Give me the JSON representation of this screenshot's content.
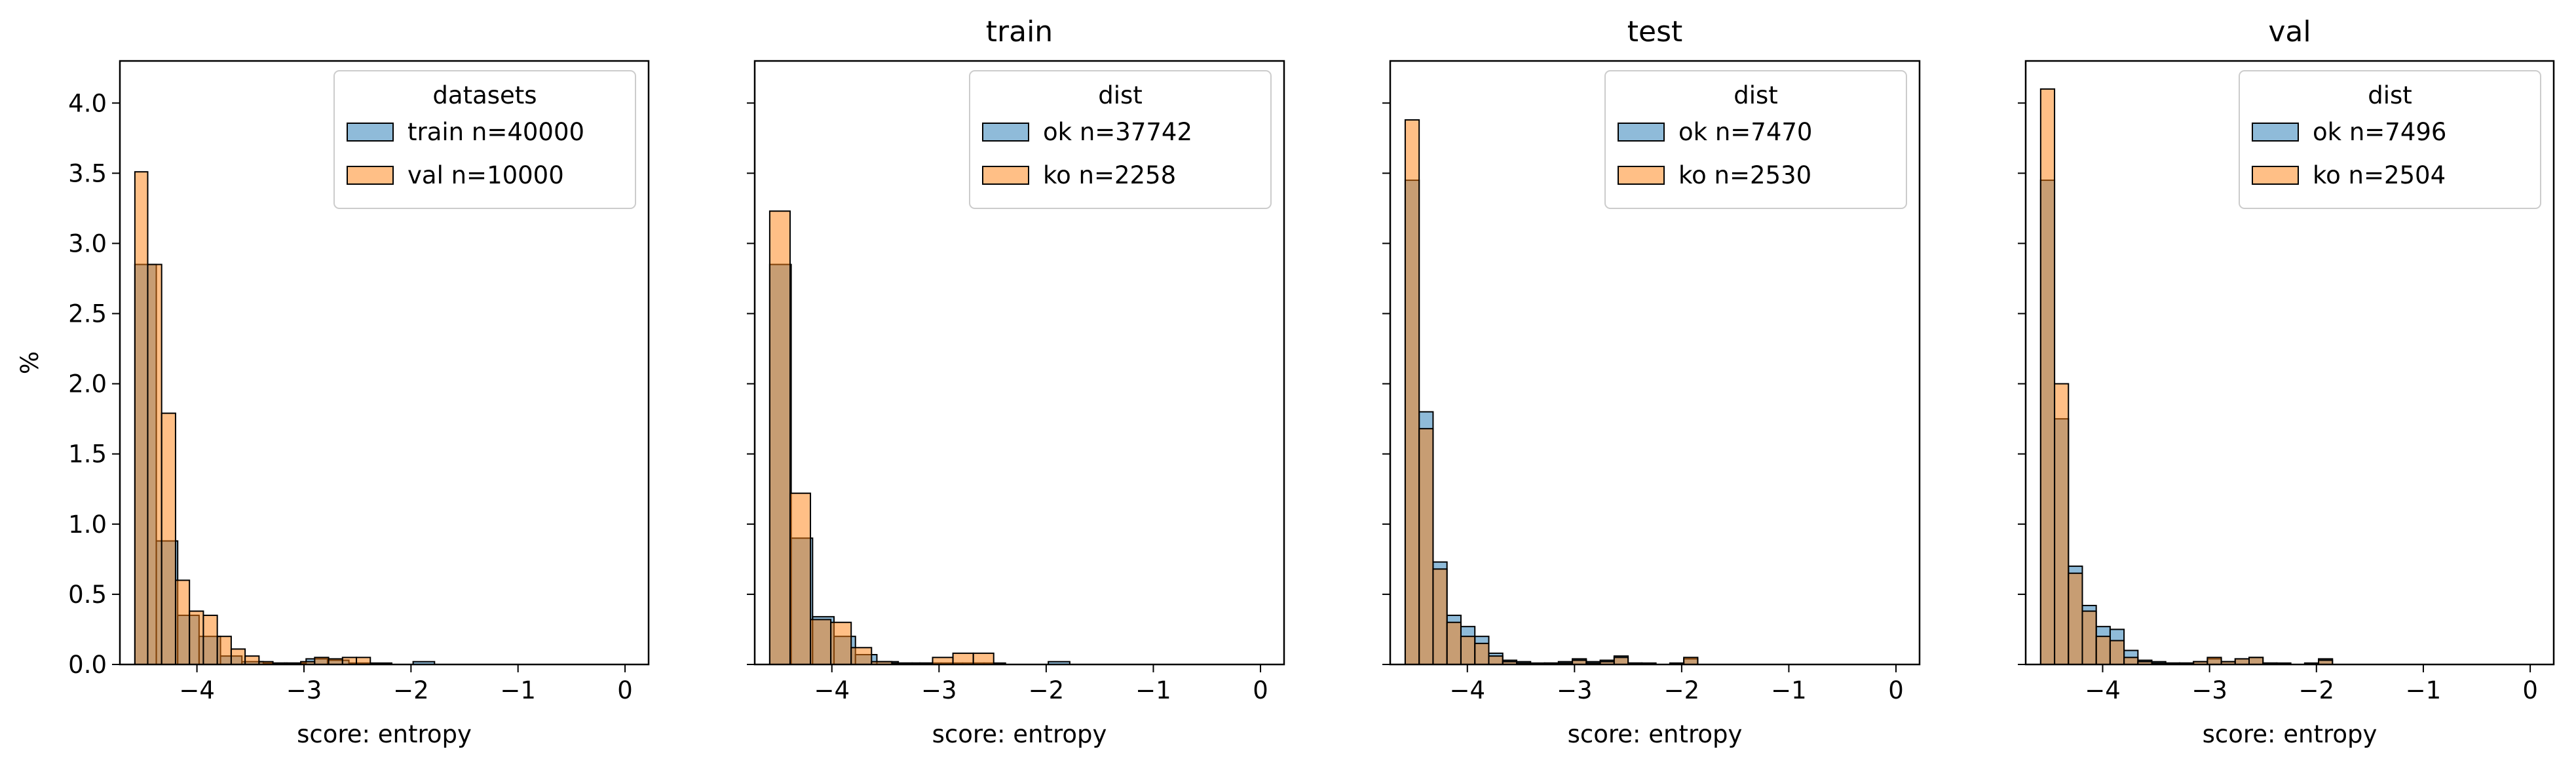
{
  "chart_data": [
    {
      "type": "histogram",
      "title": "",
      "xlabel": "score: entropy",
      "ylabel": "%",
      "xlim": [
        -4.72,
        0.22
      ],
      "ylim": [
        0,
        4.3
      ],
      "xticks": [
        -4,
        -3,
        -2,
        -1,
        0
      ],
      "xtick_labels": [
        "−4",
        "−3",
        "−2",
        "−1",
        "0"
      ],
      "yticks": [
        0,
        0.5,
        1.0,
        1.5,
        2.0,
        2.5,
        3.0,
        3.5,
        4.0
      ],
      "ytick_labels": [
        "0.0",
        "0.5",
        "1.0",
        "1.5",
        "2.0",
        "2.5",
        "3.0",
        "3.5",
        "4.0"
      ],
      "legend_title": "datasets",
      "legend_position": "top-right",
      "series": [
        {
          "name": "train n=40000",
          "color": "#1f77b4",
          "bin_edges": [
            -4.58,
            -4.38,
            -4.18,
            -3.98,
            -3.78,
            -3.58,
            -3.38,
            -3.18,
            -2.98,
            -2.78,
            -2.58,
            -2.38,
            -2.18,
            -1.98,
            -1.78,
            -1.58,
            -1.38,
            -1.18,
            -0.98,
            -0.78,
            -0.58,
            -0.38,
            -0.18,
            0.02
          ],
          "values": [
            2.85,
            0.88,
            0.35,
            0.2,
            0.06,
            0.02,
            0.01,
            0.01,
            0.04,
            0.03,
            0.01,
            0.01,
            0.0,
            0.02,
            0.0,
            0.0,
            0.0,
            0.0,
            0.0,
            0.0,
            0.0,
            0.0,
            0.0
          ]
        },
        {
          "name": "val n=10000",
          "color": "#ff7f0e",
          "bin_edges": [
            -4.58,
            -4.46,
            -4.33,
            -4.2,
            -4.07,
            -3.94,
            -3.81,
            -3.68,
            -3.55,
            -3.42,
            -3.29,
            -3.16,
            -3.03,
            -2.9,
            -2.77,
            -2.64,
            -2.51,
            -2.38
          ],
          "values": [
            3.51,
            2.85,
            1.79,
            0.6,
            0.38,
            0.35,
            0.2,
            0.11,
            0.06,
            0.02,
            0.01,
            0.01,
            0.02,
            0.05,
            0.04,
            0.05,
            0.05
          ]
        }
      ]
    },
    {
      "type": "histogram",
      "title": "train",
      "xlabel": "score: entropy",
      "ylabel": "",
      "xlim": [
        -4.72,
        0.22
      ],
      "ylim": [
        0,
        4.3
      ],
      "xticks": [
        -4,
        -3,
        -2,
        -1,
        0
      ],
      "xtick_labels": [
        "−4",
        "−3",
        "−2",
        "−1",
        "0"
      ],
      "legend_title": "dist",
      "legend_position": "top-right",
      "series": [
        {
          "name": "ok n=37742",
          "color": "#1f77b4",
          "bin_edges": [
            -4.58,
            -4.38,
            -4.18,
            -3.98,
            -3.78,
            -3.58,
            -3.38,
            -3.18,
            -2.98,
            -2.78,
            -2.58,
            -2.38,
            -2.18,
            -1.98,
            -1.78,
            -1.58,
            -1.38,
            -1.18,
            -0.98,
            -0.78,
            -0.58,
            -0.38,
            -0.18,
            0.02
          ],
          "values": [
            2.85,
            0.9,
            0.34,
            0.2,
            0.07,
            0.02,
            0.01,
            0.01,
            0.01,
            0.01,
            0.01,
            0.0,
            0.0,
            0.02,
            0.0,
            0.0,
            0.0,
            0.0,
            0.0,
            0.0,
            0.0,
            0.0,
            0.0
          ]
        },
        {
          "name": "ko n=2258",
          "color": "#ff7f0e",
          "bin_edges": [
            -4.58,
            -4.39,
            -4.2,
            -4.01,
            -3.82,
            -3.63,
            -3.44,
            -3.25,
            -3.06,
            -2.87,
            -2.68,
            -2.49
          ],
          "values": [
            3.23,
            1.22,
            0.32,
            0.3,
            0.12,
            0.02,
            0.01,
            0.01,
            0.05,
            0.08,
            0.08
          ]
        }
      ]
    },
    {
      "type": "histogram",
      "title": "test",
      "xlabel": "score: entropy",
      "ylabel": "",
      "xlim": [
        -4.72,
        0.22
      ],
      "ylim": [
        0,
        4.3
      ],
      "xticks": [
        -4,
        -3,
        -2,
        -1,
        0
      ],
      "xtick_labels": [
        "−4",
        "−3",
        "−2",
        "−1",
        "0"
      ],
      "legend_title": "dist",
      "legend_position": "top-right",
      "series": [
        {
          "name": "ok n=7470",
          "color": "#1f77b4",
          "bin_edges": [
            -4.58,
            -4.45,
            -4.32,
            -4.19,
            -4.06,
            -3.93,
            -3.8,
            -3.67,
            -3.54,
            -3.41,
            -3.28,
            -3.15,
            -3.02,
            -2.89,
            -2.76,
            -2.63,
            -2.5,
            -2.37,
            -2.24,
            -2.11,
            -1.98,
            -1.85,
            -1.72
          ],
          "values": [
            3.45,
            1.8,
            0.73,
            0.35,
            0.27,
            0.2,
            0.08,
            0.03,
            0.02,
            0.01,
            0.01,
            0.02,
            0.04,
            0.02,
            0.03,
            0.06,
            0.01,
            0.01,
            0.0,
            0.01,
            0.04,
            0.0
          ]
        },
        {
          "name": "ko n=2530",
          "color": "#ff7f0e",
          "bin_edges": [
            -4.58,
            -4.45,
            -4.32,
            -4.19,
            -4.06,
            -3.93,
            -3.8,
            -3.67,
            -3.54,
            -3.41,
            -3.28,
            -3.15,
            -3.02,
            -2.89,
            -2.76,
            -2.63,
            -2.5,
            -2.37,
            -2.24,
            -2.11,
            -1.98,
            -1.85,
            -1.72
          ],
          "values": [
            3.88,
            1.68,
            0.68,
            0.3,
            0.2,
            0.15,
            0.06,
            0.02,
            0.01,
            0.0,
            0.01,
            0.01,
            0.03,
            0.01,
            0.02,
            0.05,
            0.01,
            0.0,
            0.0,
            0.0,
            0.05,
            0.0
          ]
        }
      ]
    },
    {
      "type": "histogram",
      "title": "val",
      "xlabel": "score: entropy",
      "ylabel": "",
      "xlim": [
        -4.72,
        0.22
      ],
      "ylim": [
        0,
        4.3
      ],
      "xticks": [
        -4,
        -3,
        -2,
        -1,
        0
      ],
      "xtick_labels": [
        "−4",
        "−3",
        "−2",
        "−1",
        "0"
      ],
      "legend_title": "dist",
      "legend_position": "top-right",
      "series": [
        {
          "name": "ok n=7496",
          "color": "#1f77b4",
          "bin_edges": [
            -4.58,
            -4.45,
            -4.32,
            -4.19,
            -4.06,
            -3.93,
            -3.8,
            -3.67,
            -3.54,
            -3.41,
            -3.28,
            -3.15,
            -3.02,
            -2.89,
            -2.76,
            -2.63,
            -2.5,
            -2.37,
            -2.24,
            -2.11,
            -1.98,
            -1.85,
            -1.72
          ],
          "values": [
            3.45,
            1.75,
            0.7,
            0.42,
            0.27,
            0.25,
            0.1,
            0.03,
            0.02,
            0.01,
            0.01,
            0.02,
            0.04,
            0.02,
            0.04,
            0.05,
            0.01,
            0.01,
            0.0,
            0.01,
            0.04,
            0.0
          ]
        },
        {
          "name": "ko n=2504",
          "color": "#ff7f0e",
          "bin_edges": [
            -4.58,
            -4.45,
            -4.32,
            -4.19,
            -4.06,
            -3.93,
            -3.8,
            -3.67,
            -3.54,
            -3.41,
            -3.28,
            -3.15,
            -3.02,
            -2.89,
            -2.76,
            -2.63,
            -2.5,
            -2.37,
            -2.24,
            -2.11,
            -1.98,
            -1.85,
            -1.72
          ],
          "values": [
            4.1,
            2.0,
            0.65,
            0.38,
            0.2,
            0.17,
            0.05,
            0.02,
            0.01,
            0.01,
            0.01,
            0.02,
            0.05,
            0.02,
            0.04,
            0.05,
            0.01,
            0.0,
            0.0,
            0.0,
            0.03,
            0.0
          ]
        }
      ]
    }
  ]
}
